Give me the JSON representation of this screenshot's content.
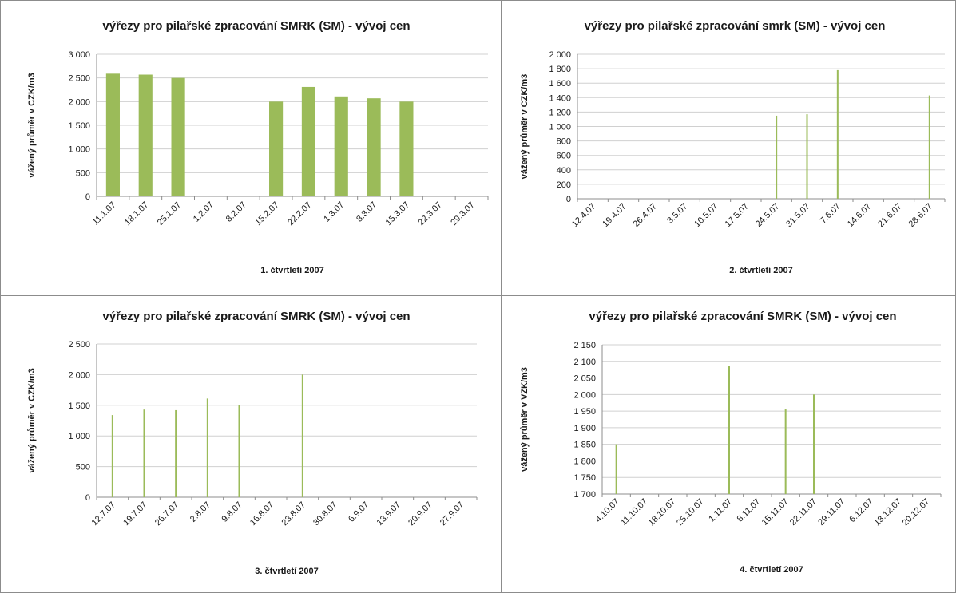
{
  "chart_data": [
    {
      "type": "bar",
      "title": "výřezy pro pilařské zpracování SMRK (SM) - vývoj cen",
      "xlabel": "1. čtvrtletí 2007",
      "ylabel": "vážený průměr v CZK/m3",
      "ylim": [
        0,
        3000
      ],
      "yticks": [
        "0",
        "500",
        "1 000",
        "1 500",
        "2 000",
        "2 500",
        "3 000"
      ],
      "grid": true,
      "categories": [
        "11.1.07",
        "18.1.07",
        "25.1.07",
        "1.2.07",
        "8.2.07",
        "15.2.07",
        "22.2.07",
        "1.3.07",
        "8.3.07",
        "15.3.07",
        "22.3.07",
        "29.3.07"
      ],
      "values": [
        2590,
        2570,
        2500,
        null,
        null,
        2000,
        2310,
        2110,
        2070,
        2000,
        null,
        null
      ],
      "color": "#9bbb59"
    },
    {
      "type": "bar",
      "title": "výřezy pro pilařské zpracování smrk (SM) - vývoj cen",
      "xlabel": "2. čtvrtletí 2007",
      "ylabel": "vážený průměr v CZK/m3",
      "ylim": [
        0,
        2000
      ],
      "yticks": [
        "0",
        "200",
        "400",
        "600",
        "800",
        "1 000",
        "1 200",
        "1 400",
        "1 600",
        "1 800",
        "2 000"
      ],
      "grid": true,
      "categories": [
        "12.4.07",
        "19.4.07",
        "26.4.07",
        "3.5.07",
        "10.5.07",
        "17.5.07",
        "24.5.07",
        "31.5.07",
        "7.6.07",
        "14.6.07",
        "21.6.07",
        "28.6.07"
      ],
      "values": [
        null,
        null,
        null,
        null,
        null,
        null,
        1150,
        1170,
        1780,
        null,
        null,
        1430
      ],
      "color": "#9bbb59"
    },
    {
      "type": "bar",
      "title": "výřezy pro pilařské zpracování SMRK (SM) - vývoj cen",
      "xlabel": "3. čtvrtletí 2007",
      "ylabel": "vážený průměr v CZK/m3",
      "ylim": [
        0,
        2500
      ],
      "yticks": [
        "0",
        "500",
        "1 000",
        "1 500",
        "2 000",
        "2 500"
      ],
      "grid": true,
      "categories": [
        "12.7.07",
        "19.7.07",
        "26.7.07",
        "2.8.07",
        "9.8.07",
        "16.8.07",
        "23.8.07",
        "30.8.07",
        "6.9.07",
        "13.9.07",
        "20.9.07",
        "27.9.07"
      ],
      "values": [
        1340,
        1430,
        1420,
        1610,
        1510,
        null,
        2000,
        null,
        null,
        null,
        null,
        null
      ],
      "color": "#9bbb59"
    },
    {
      "type": "bar",
      "title": "výřezy pro pilařské zpracování SMRK (SM) - vývoj cen",
      "xlabel": "4. čtvrtletí 2007",
      "ylabel": "vážený průměr v VZK/m3",
      "ylim": [
        1700,
        2150
      ],
      "yticks": [
        "1 700",
        "1 750",
        "1 800",
        "1 850",
        "1 900",
        "1 950",
        "2 000",
        "2 050",
        "2 100",
        "2 150"
      ],
      "grid": true,
      "categories": [
        "4.10.07",
        "11.10.07",
        "18.10.07",
        "25.10.07",
        "1.11.07",
        "8.11.07",
        "15.11.07",
        "22.11.07",
        "29.11.07",
        "6.12.07",
        "13.12.07",
        "20.12.07"
      ],
      "values": [
        1850,
        null,
        null,
        null,
        2085,
        null,
        1955,
        2000,
        null,
        null,
        null,
        null
      ],
      "color": "#9bbb59"
    }
  ]
}
